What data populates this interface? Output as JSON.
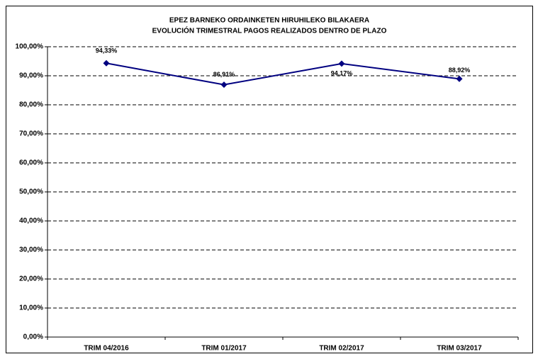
{
  "chart_data": {
    "type": "line",
    "title": "EPEZ BARNEKO ORDAINKETEN HIRUHILEKO BILAKAERA",
    "subtitle": "EVOLUCIÓN TRIMESTRAL PAGOS REALIZADOS DENTRO DE PLAZO",
    "categories": [
      "TRIM 04/2016",
      "TRIM 01/2017",
      "TRIM 02/2017",
      "TRIM 03/2017"
    ],
    "series": [
      {
        "name": null,
        "color": "#000080",
        "values": [
          94.33,
          86.91,
          94.17,
          88.92
        ],
        "value_labels": [
          "94,33%",
          "86,91%",
          "94,17%",
          "88,92%"
        ]
      }
    ],
    "ylim": [
      0,
      100
    ],
    "yticks": [
      {
        "value": 0,
        "label": "0,00%"
      },
      {
        "value": 10,
        "label": "10,00%"
      },
      {
        "value": 20,
        "label": "20,00%"
      },
      {
        "value": 30,
        "label": "30,00%"
      },
      {
        "value": 40,
        "label": "40,00%"
      },
      {
        "value": 50,
        "label": "50,00%"
      },
      {
        "value": 60,
        "label": "60,00%"
      },
      {
        "value": 70,
        "label": "70,00%"
      },
      {
        "value": 80,
        "label": "80,00%"
      },
      {
        "value": 90,
        "label": "90,00%"
      },
      {
        "value": 100,
        "label": "100,00%"
      }
    ],
    "grid": true
  }
}
